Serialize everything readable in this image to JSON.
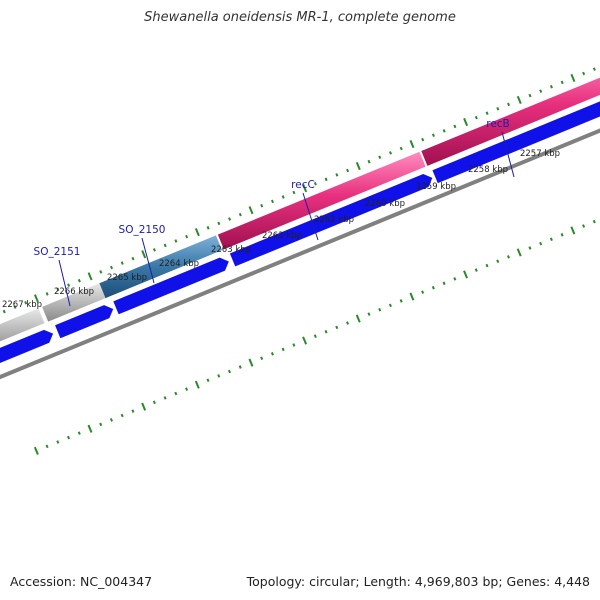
{
  "title": "Shewanella oneidensis MR-1, complete genome",
  "footer": {
    "accession": "Accession: NC_004347",
    "summary": "Topology: circular; Length: 4,969,803 bp; Genes: 4,448"
  },
  "kbp_labels": [
    "2257 kbp",
    "2258 kbp",
    "2259 kbp",
    "2260 kbp",
    "2261 kbp",
    "2262 kbp",
    "2263 kbp",
    "2264 kbp",
    "2265 kbp",
    "2266 kbp",
    "2267 kbp"
  ],
  "genes": [
    {
      "name": "recB",
      "color": "#e8307e"
    },
    {
      "name": "recC",
      "color": "#e8307e"
    },
    {
      "name": "SO_2150",
      "color": "#3a78a8"
    },
    {
      "name": "SO_2151",
      "color": "#b8b8b8"
    }
  ],
  "colors": {
    "pink": "#e8307e",
    "steel": "#3a78a8",
    "grey": "#b8b8b8",
    "blue": "#1010e8",
    "backbone": "#808080",
    "tick": "#2a8a2a",
    "gene_label": "#1b1bb0"
  }
}
